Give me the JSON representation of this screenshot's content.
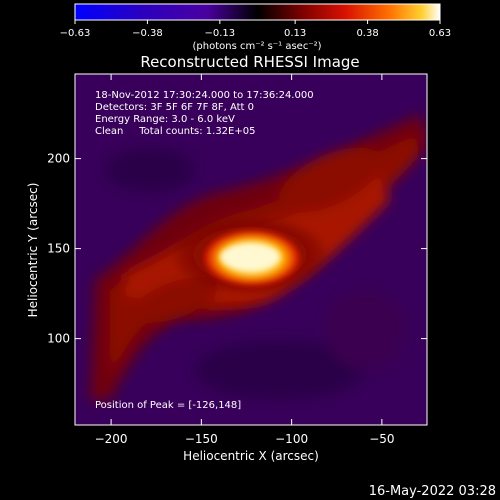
{
  "chart_data": {
    "type": "heatmap",
    "title": "Reconstructed RHESSI Image",
    "xlabel": "Heliocentric X (arcsec)",
    "ylabel": "Heliocentric Y (arcsec)",
    "xlim": [
      -220,
      -25
    ],
    "ylim": [
      52,
      247
    ],
    "xticks": [
      -200,
      -150,
      -100,
      -50
    ],
    "xtick_labels": [
      "−200",
      "−150",
      "−100",
      "−50"
    ],
    "yticks": [
      100,
      150,
      200
    ],
    "ytick_labels": [
      "100",
      "150",
      "200"
    ],
    "colorbar": {
      "range": [
        -0.63,
        0.63
      ],
      "ticks": [
        -0.63,
        -0.38,
        -0.13,
        0.13,
        0.38,
        0.63
      ],
      "tick_labels": [
        "−0.63",
        "−0.38",
        "−0.13",
        "0.13",
        "0.38",
        "0.63"
      ],
      "unit_label": "(photons cm⁻² s⁻¹ asec⁻²)",
      "colors": [
        "#0000ff",
        "#2a00c0",
        "#4a00a0",
        "#000000",
        "#7a0000",
        "#d81000",
        "#ff7000",
        "#ffd030",
        "#ffffff"
      ]
    },
    "info_lines": [
      "18-Nov-2012 17:30:24.000 to 17:36:24.000",
      "Detectors: 3F 5F 6F 7F 8F, Att 0",
      "Energy Range: 3.0 - 6.0 keV",
      "Clean     Total counts: 1.32E+05"
    ],
    "peak_label": "Position of Peak = [-126,148]",
    "peak": {
      "x": -126,
      "y": 148
    },
    "timestamp": "16-May-2022 03:28"
  }
}
